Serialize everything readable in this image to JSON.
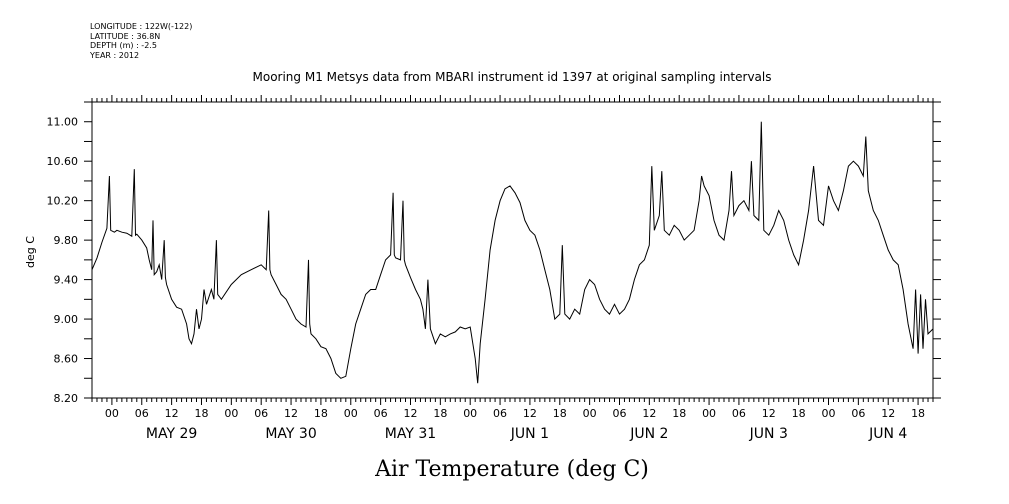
{
  "meta": {
    "longitude": "LONGITUDE : 122W(-122)",
    "latitude": "LATITUDE : 36.8N",
    "depth": "DEPTH (m) : -2.5",
    "year": "YEAR : 2012"
  },
  "chart_data": {
    "type": "line",
    "title": "Mooring M1 Metsys data from MBARI instrument id 1397 at original sampling intervals",
    "bottom_title": "Air Temperature (deg C)",
    "ylabel": "deg C",
    "xlabel": "",
    "grid": false,
    "ylim": [
      8.2,
      11.2
    ],
    "y_ticks": [
      8.2,
      8.6,
      9.0,
      9.4,
      9.8,
      10.2,
      10.6,
      11.0
    ],
    "y_tick_labels": [
      "8.20",
      "8.60",
      "9.00",
      "9.40",
      "9.80",
      "10.20",
      "10.60",
      "11.00"
    ],
    "xlim": [
      "2012-05-28T20:00",
      "2012-06-04T21:00"
    ],
    "hour_labels": [
      "00",
      "06",
      "12",
      "18"
    ],
    "day_labels": [
      {
        "label": "MAY 29",
        "date": "2012-05-29T12:00"
      },
      {
        "label": "MAY 30",
        "date": "2012-05-30T12:00"
      },
      {
        "label": "MAY 31",
        "date": "2012-05-31T12:00"
      },
      {
        "label": "JUN  1",
        "date": "2012-06-01T12:00"
      },
      {
        "label": "JUN  2",
        "date": "2012-06-02T12:00"
      },
      {
        "label": "JUN  3",
        "date": "2012-06-03T12:00"
      },
      {
        "label": "JUN  4",
        "date": "2012-06-04T12:00"
      }
    ],
    "series": [
      {
        "color": "#000000",
        "points": [
          [
            "2012-05-28T20:00",
            9.5
          ],
          [
            "2012-05-28T21:00",
            9.62
          ],
          [
            "2012-05-28T22:00",
            9.78
          ],
          [
            "2012-05-28T23:00",
            9.92
          ],
          [
            "2012-05-28T23:30",
            10.45
          ],
          [
            "2012-05-28T23:45",
            9.9
          ],
          [
            "2012-05-29T00:30",
            9.88
          ],
          [
            "2012-05-29T01:00",
            9.9
          ],
          [
            "2012-05-29T02:00",
            9.88
          ],
          [
            "2012-05-29T03:00",
            9.87
          ],
          [
            "2012-05-29T04:00",
            9.84
          ],
          [
            "2012-05-29T04:30",
            10.52
          ],
          [
            "2012-05-29T04:45",
            9.85
          ],
          [
            "2012-05-29T05:00",
            9.86
          ],
          [
            "2012-05-29T06:00",
            9.8
          ],
          [
            "2012-05-29T07:00",
            9.72
          ],
          [
            "2012-05-29T07:30",
            9.6
          ],
          [
            "2012-05-29T08:00",
            9.5
          ],
          [
            "2012-05-29T08:15",
            10.0
          ],
          [
            "2012-05-29T08:30",
            9.45
          ],
          [
            "2012-05-29T09:00",
            9.48
          ],
          [
            "2012-05-29T09:30",
            9.55
          ],
          [
            "2012-05-29T10:00",
            9.4
          ],
          [
            "2012-05-29T10:30",
            9.8
          ],
          [
            "2012-05-29T10:45",
            9.42
          ],
          [
            "2012-05-29T11:00",
            9.35
          ],
          [
            "2012-05-29T12:00",
            9.2
          ],
          [
            "2012-05-29T13:00",
            9.12
          ],
          [
            "2012-05-29T14:00",
            9.1
          ],
          [
            "2012-05-29T15:00",
            8.95
          ],
          [
            "2012-05-29T15:30",
            8.8
          ],
          [
            "2012-05-29T16:00",
            8.75
          ],
          [
            "2012-05-29T16:30",
            8.85
          ],
          [
            "2012-05-29T17:00",
            9.1
          ],
          [
            "2012-05-29T17:30",
            8.9
          ],
          [
            "2012-05-29T18:00",
            9.0
          ],
          [
            "2012-05-29T18:30",
            9.3
          ],
          [
            "2012-05-29T19:00",
            9.15
          ],
          [
            "2012-05-29T20:00",
            9.3
          ],
          [
            "2012-05-29T20:30",
            9.2
          ],
          [
            "2012-05-29T21:00",
            9.8
          ],
          [
            "2012-05-29T21:15",
            9.25
          ],
          [
            "2012-05-29T22:00",
            9.2
          ],
          [
            "2012-05-30T00:00",
            9.35
          ],
          [
            "2012-05-30T02:00",
            9.45
          ],
          [
            "2012-05-30T04:00",
            9.5
          ],
          [
            "2012-05-30T06:00",
            9.55
          ],
          [
            "2012-05-30T07:00",
            9.5
          ],
          [
            "2012-05-30T07:30",
            10.1
          ],
          [
            "2012-05-30T07:45",
            9.5
          ],
          [
            "2012-05-30T08:00",
            9.45
          ],
          [
            "2012-05-30T09:00",
            9.35
          ],
          [
            "2012-05-30T10:00",
            9.25
          ],
          [
            "2012-05-30T11:00",
            9.2
          ],
          [
            "2012-05-30T12:00",
            9.1
          ],
          [
            "2012-05-30T13:00",
            9.0
          ],
          [
            "2012-05-30T14:00",
            8.95
          ],
          [
            "2012-05-30T15:00",
            8.92
          ],
          [
            "2012-05-30T15:30",
            9.6
          ],
          [
            "2012-05-30T15:45",
            8.95
          ],
          [
            "2012-05-30T16:00",
            8.85
          ],
          [
            "2012-05-30T17:00",
            8.8
          ],
          [
            "2012-05-30T18:00",
            8.72
          ],
          [
            "2012-05-30T19:00",
            8.7
          ],
          [
            "2012-05-30T20:00",
            8.6
          ],
          [
            "2012-05-30T21:00",
            8.45
          ],
          [
            "2012-05-30T22:00",
            8.4
          ],
          [
            "2012-05-30T23:00",
            8.42
          ],
          [
            "2012-05-31T00:00",
            8.7
          ],
          [
            "2012-05-31T01:00",
            8.95
          ],
          [
            "2012-05-31T02:00",
            9.1
          ],
          [
            "2012-05-31T03:00",
            9.25
          ],
          [
            "2012-05-31T04:00",
            9.3
          ],
          [
            "2012-05-31T05:00",
            9.3
          ],
          [
            "2012-05-31T06:00",
            9.45
          ],
          [
            "2012-05-31T07:00",
            9.6
          ],
          [
            "2012-05-31T08:00",
            9.65
          ],
          [
            "2012-05-31T08:30",
            10.28
          ],
          [
            "2012-05-31T08:45",
            9.65
          ],
          [
            "2012-05-31T09:00",
            9.62
          ],
          [
            "2012-05-31T10:00",
            9.6
          ],
          [
            "2012-05-31T10:30",
            10.2
          ],
          [
            "2012-05-31T10:45",
            9.6
          ],
          [
            "2012-05-31T11:00",
            9.55
          ],
          [
            "2012-05-31T12:00",
            9.42
          ],
          [
            "2012-05-31T13:00",
            9.3
          ],
          [
            "2012-05-31T14:00",
            9.2
          ],
          [
            "2012-05-31T14:30",
            9.1
          ],
          [
            "2012-05-31T15:00",
            8.9
          ],
          [
            "2012-05-31T15:30",
            9.4
          ],
          [
            "2012-05-31T16:00",
            8.9
          ],
          [
            "2012-05-31T17:00",
            8.75
          ],
          [
            "2012-05-31T18:00",
            8.85
          ],
          [
            "2012-05-31T19:00",
            8.82
          ],
          [
            "2012-05-31T20:00",
            8.85
          ],
          [
            "2012-05-31T21:00",
            8.87
          ],
          [
            "2012-05-31T22:00",
            8.92
          ],
          [
            "2012-05-31T23:00",
            8.9
          ],
          [
            "2012-06-01T00:00",
            8.92
          ],
          [
            "2012-06-01T01:00",
            8.6
          ],
          [
            "2012-06-01T01:30",
            8.35
          ],
          [
            "2012-06-01T02:00",
            8.75
          ],
          [
            "2012-06-01T03:00",
            9.2
          ],
          [
            "2012-06-01T04:00",
            9.7
          ],
          [
            "2012-06-01T05:00",
            10.0
          ],
          [
            "2012-06-01T06:00",
            10.2
          ],
          [
            "2012-06-01T07:00",
            10.32
          ],
          [
            "2012-06-01T08:00",
            10.35
          ],
          [
            "2012-06-01T09:00",
            10.28
          ],
          [
            "2012-06-01T10:00",
            10.18
          ],
          [
            "2012-06-01T11:00",
            10.0
          ],
          [
            "2012-06-01T12:00",
            9.9
          ],
          [
            "2012-06-01T13:00",
            9.85
          ],
          [
            "2012-06-01T14:00",
            9.7
          ],
          [
            "2012-06-01T15:00",
            9.5
          ],
          [
            "2012-06-01T16:00",
            9.3
          ],
          [
            "2012-06-01T17:00",
            9.0
          ],
          [
            "2012-06-01T18:00",
            9.05
          ],
          [
            "2012-06-01T18:30",
            9.75
          ],
          [
            "2012-06-01T19:00",
            9.05
          ],
          [
            "2012-06-01T20:00",
            9.0
          ],
          [
            "2012-06-01T21:00",
            9.1
          ],
          [
            "2012-06-01T22:00",
            9.05
          ],
          [
            "2012-06-01T23:00",
            9.3
          ],
          [
            "2012-06-02T00:00",
            9.4
          ],
          [
            "2012-06-02T01:00",
            9.35
          ],
          [
            "2012-06-02T02:00",
            9.2
          ],
          [
            "2012-06-02T03:00",
            9.1
          ],
          [
            "2012-06-02T04:00",
            9.05
          ],
          [
            "2012-06-02T05:00",
            9.15
          ],
          [
            "2012-06-02T06:00",
            9.05
          ],
          [
            "2012-06-02T07:00",
            9.1
          ],
          [
            "2012-06-02T08:00",
            9.2
          ],
          [
            "2012-06-02T09:00",
            9.4
          ],
          [
            "2012-06-02T10:00",
            9.55
          ],
          [
            "2012-06-02T11:00",
            9.6
          ],
          [
            "2012-06-02T12:00",
            9.75
          ],
          [
            "2012-06-02T12:30",
            10.55
          ],
          [
            "2012-06-02T13:00",
            9.9
          ],
          [
            "2012-06-02T14:00",
            10.05
          ],
          [
            "2012-06-02T14:30",
            10.5
          ],
          [
            "2012-06-02T15:00",
            9.9
          ],
          [
            "2012-06-02T16:00",
            9.85
          ],
          [
            "2012-06-02T17:00",
            9.95
          ],
          [
            "2012-06-02T18:00",
            9.9
          ],
          [
            "2012-06-02T19:00",
            9.8
          ],
          [
            "2012-06-02T20:00",
            9.85
          ],
          [
            "2012-06-02T21:00",
            9.9
          ],
          [
            "2012-06-02T22:00",
            10.2
          ],
          [
            "2012-06-02T22:30",
            10.45
          ],
          [
            "2012-06-02T23:00",
            10.35
          ],
          [
            "2012-06-03T00:00",
            10.25
          ],
          [
            "2012-06-03T01:00",
            10.0
          ],
          [
            "2012-06-03T02:00",
            9.85
          ],
          [
            "2012-06-03T03:00",
            9.8
          ],
          [
            "2012-06-03T04:00",
            10.1
          ],
          [
            "2012-06-03T04:30",
            10.5
          ],
          [
            "2012-06-03T05:00",
            10.05
          ],
          [
            "2012-06-03T06:00",
            10.15
          ],
          [
            "2012-06-03T07:00",
            10.2
          ],
          [
            "2012-06-03T08:00",
            10.1
          ],
          [
            "2012-06-03T08:30",
            10.6
          ],
          [
            "2012-06-03T09:00",
            10.05
          ],
          [
            "2012-06-03T10:00",
            10.0
          ],
          [
            "2012-06-03T10:30",
            11.0
          ],
          [
            "2012-06-03T11:00",
            9.9
          ],
          [
            "2012-06-03T12:00",
            9.85
          ],
          [
            "2012-06-03T13:00",
            9.95
          ],
          [
            "2012-06-03T14:00",
            10.1
          ],
          [
            "2012-06-03T15:00",
            10.0
          ],
          [
            "2012-06-03T16:00",
            9.8
          ],
          [
            "2012-06-03T17:00",
            9.65
          ],
          [
            "2012-06-03T18:00",
            9.55
          ],
          [
            "2012-06-03T19:00",
            9.8
          ],
          [
            "2012-06-03T20:00",
            10.1
          ],
          [
            "2012-06-03T21:00",
            10.55
          ],
          [
            "2012-06-03T22:00",
            10.0
          ],
          [
            "2012-06-03T23:00",
            9.95
          ],
          [
            "2012-06-04T00:00",
            10.35
          ],
          [
            "2012-06-04T01:00",
            10.2
          ],
          [
            "2012-06-04T02:00",
            10.1
          ],
          [
            "2012-06-04T03:00",
            10.3
          ],
          [
            "2012-06-04T04:00",
            10.55
          ],
          [
            "2012-06-04T05:00",
            10.6
          ],
          [
            "2012-06-04T06:00",
            10.55
          ],
          [
            "2012-06-04T07:00",
            10.45
          ],
          [
            "2012-06-04T07:30",
            10.85
          ],
          [
            "2012-06-04T08:00",
            10.3
          ],
          [
            "2012-06-04T09:00",
            10.1
          ],
          [
            "2012-06-04T10:00",
            10.0
          ],
          [
            "2012-06-04T11:00",
            9.85
          ],
          [
            "2012-06-04T12:00",
            9.7
          ],
          [
            "2012-06-04T13:00",
            9.6
          ],
          [
            "2012-06-04T14:00",
            9.55
          ],
          [
            "2012-06-04T15:00",
            9.3
          ],
          [
            "2012-06-04T16:00",
            8.95
          ],
          [
            "2012-06-04T17:00",
            8.7
          ],
          [
            "2012-06-04T17:30",
            9.3
          ],
          [
            "2012-06-04T18:00",
            8.65
          ],
          [
            "2012-06-04T18:30",
            9.25
          ],
          [
            "2012-06-04T19:00",
            8.7
          ],
          [
            "2012-06-04T19:30",
            9.2
          ],
          [
            "2012-06-04T20:00",
            8.85
          ],
          [
            "2012-06-04T21:00",
            8.9
          ]
        ]
      }
    ]
  }
}
